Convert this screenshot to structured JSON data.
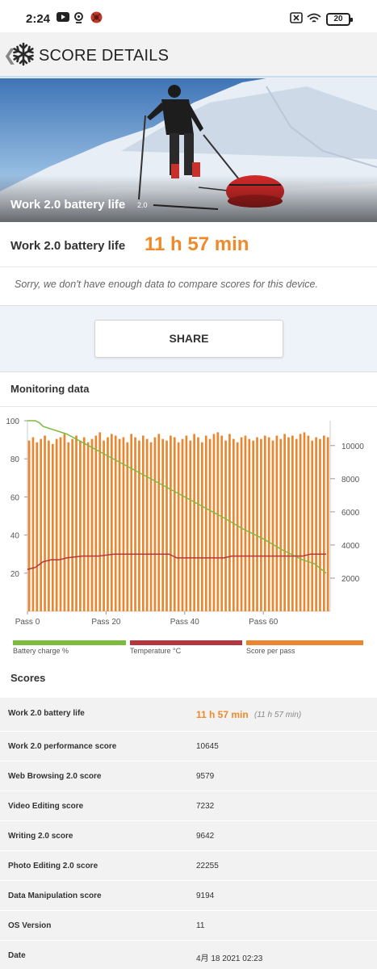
{
  "status_bar": {
    "time": "2:24",
    "battery_level": "20",
    "left_icons": [
      "youtube-icon",
      "location-icon",
      "app-notification-icon"
    ],
    "right_icons": [
      "sim-off-icon",
      "wifi-icon",
      "battery-icon"
    ]
  },
  "app_bar": {
    "title": "SCORE DETAILS",
    "back_icon": "chevron-left-icon",
    "logo_icon": "snowflake-logo-icon"
  },
  "hero": {
    "title": "Work 2.0 battery life",
    "version": "2.0"
  },
  "result": {
    "label": "Work 2.0 battery life",
    "value": "11 h 57 min",
    "note": "Sorry, we don't have enough data to compare scores for this device."
  },
  "share_label": "SHARE",
  "monitoring": {
    "title": "Monitoring data",
    "legend": [
      {
        "label": "Battery charge %",
        "color": "#7dbb3f"
      },
      {
        "label": "Temperature °C",
        "color": "#b5363e"
      },
      {
        "label": "Score per pass",
        "color": "#e9862f"
      }
    ]
  },
  "chart_data": {
    "type": "bar",
    "x_ticks": [
      "Pass 0",
      "Pass 20",
      "Pass 40",
      "Pass 60"
    ],
    "x_tick_positions": [
      0,
      20,
      40,
      60
    ],
    "x_range": [
      0,
      77
    ],
    "y_left_ticks": [
      "100",
      "80",
      "60",
      "40",
      "20"
    ],
    "y_left_range": [
      0,
      100
    ],
    "y_right_ticks": [
      "10000",
      "8000",
      "6000",
      "4000",
      "2000"
    ],
    "y_right_range": [
      0,
      11500
    ],
    "grid": "vertical",
    "series": [
      {
        "name": "Score per pass",
        "type": "bar",
        "axis": "right",
        "values": [
          10300,
          10500,
          10200,
          10400,
          10600,
          10300,
          10100,
          10400,
          10500,
          10700,
          10200,
          10400,
          10600,
          10300,
          10500,
          10200,
          10400,
          10600,
          10800,
          10300,
          10500,
          10700,
          10600,
          10400,
          10500,
          10200,
          10700,
          10500,
          10300,
          10600,
          10400,
          10200,
          10500,
          10700,
          10400,
          10300,
          10600,
          10500,
          10200,
          10400,
          10600,
          10300,
          10700,
          10500,
          10200,
          10600,
          10400,
          10700,
          10800,
          10600,
          10300,
          10700,
          10400,
          10200,
          10500,
          10600,
          10400,
          10300,
          10500,
          10400,
          10600,
          10500,
          10300,
          10600,
          10400,
          10700,
          10500,
          10600,
          10400,
          10700,
          10800,
          10600,
          10300,
          10500,
          10400,
          10600,
          10500
        ]
      },
      {
        "name": "Battery charge %",
        "type": "line",
        "axis": "left",
        "x": [
          0,
          1,
          2,
          3,
          4,
          10,
          20,
          30,
          40,
          50,
          55,
          60,
          65,
          70,
          73,
          76
        ],
        "y": [
          100,
          100,
          100,
          99,
          97,
          93,
          82,
          71,
          60,
          49,
          43,
          38,
          32,
          27,
          25,
          20
        ]
      },
      {
        "name": "Temperature °C",
        "type": "line",
        "axis": "left",
        "x": [
          0,
          2,
          4,
          6,
          8,
          10,
          14,
          18,
          22,
          28,
          34,
          36,
          38,
          40,
          45,
          50,
          52,
          54,
          58,
          62,
          66,
          70,
          72,
          76
        ],
        "y": [
          22,
          23,
          26,
          27,
          27,
          28,
          29,
          29,
          30,
          30,
          30,
          30,
          28,
          28,
          28,
          28,
          29,
          29,
          29,
          29,
          29,
          29,
          30,
          30
        ]
      }
    ]
  },
  "scores": {
    "title": "Scores",
    "rows": [
      {
        "name": "Work 2.0 battery life",
        "value": "11 h 57 min",
        "sub": "(11 h 57 min)"
      },
      {
        "name": "Work 2.0 performance score",
        "value": "10645"
      },
      {
        "name": "Web Browsing 2.0 score",
        "value": "9579"
      },
      {
        "name": "Video Editing score",
        "value": "7232"
      },
      {
        "name": "Writing 2.0 score",
        "value": "9642"
      },
      {
        "name": "Photo Editing 2.0 score",
        "value": "22255"
      },
      {
        "name": "Data Manipulation score",
        "value": "9194"
      },
      {
        "name": "OS Version",
        "value": "11"
      },
      {
        "name": "Date",
        "value": "4月 18 2021 02:23"
      }
    ]
  }
}
